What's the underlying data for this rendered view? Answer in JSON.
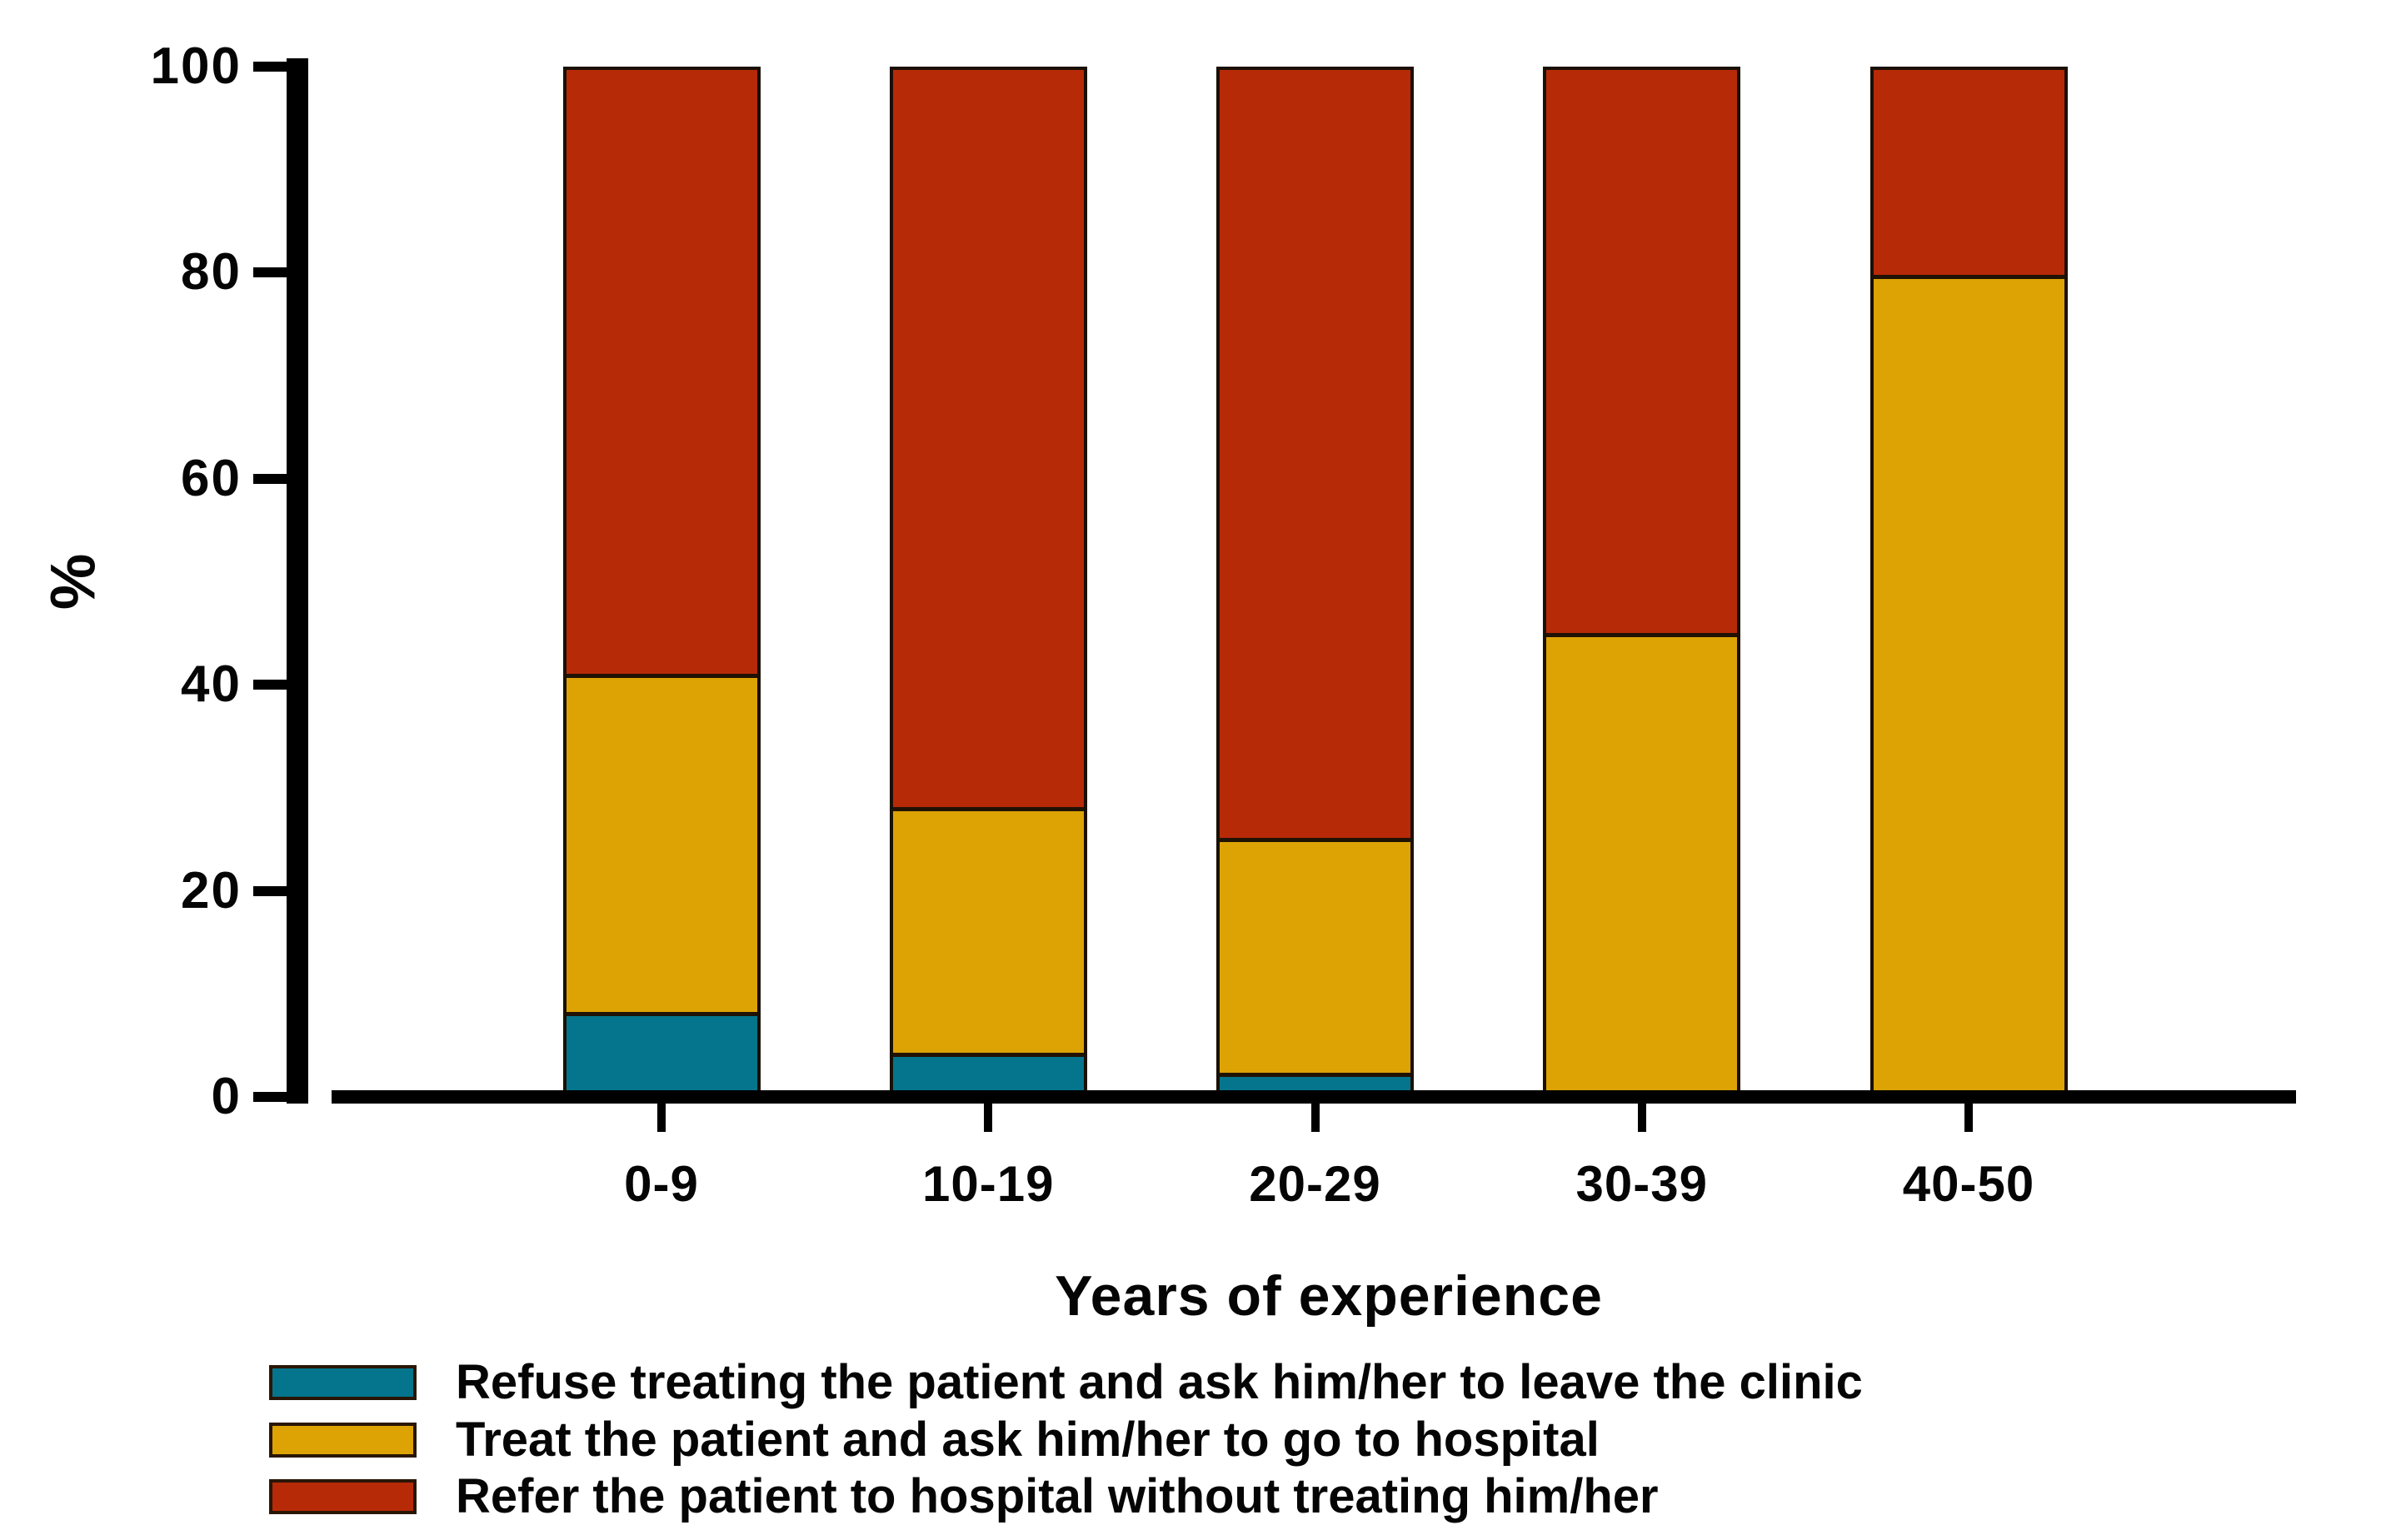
{
  "chart_data": {
    "type": "bar",
    "stacked": true,
    "categories": [
      "0-9",
      "10-19",
      "20-29",
      "30-39",
      "40-50"
    ],
    "series": [
      {
        "name": "Refuse treating the patient and ask him/her to leave the clinic",
        "color": "#04758c",
        "values": [
          8,
          4,
          2,
          0,
          0
        ]
      },
      {
        "name": "Treat the patient and ask him/her to go to hospital",
        "color": "#dda305",
        "values": [
          33,
          24,
          23,
          45,
          80
        ]
      },
      {
        "name": "Refer the patient to hospital without treating him/her",
        "color": "#b72a08",
        "values": [
          59,
          72,
          75,
          55,
          20
        ]
      }
    ],
    "xlabel": "Years of experience",
    "ylabel": "%",
    "y_ticks": [
      0,
      20,
      40,
      60,
      80,
      100
    ],
    "ylim": [
      0,
      100
    ],
    "grid": false,
    "legend_position": "bottom-left",
    "bar_totals": [
      100,
      100,
      100,
      100,
      100
    ]
  }
}
